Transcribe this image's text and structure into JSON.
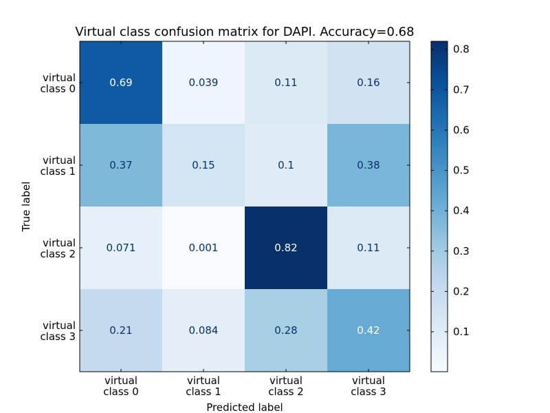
{
  "chart_data": {
    "type": "heatmap",
    "title": "Virtual class confusion matrix for DAPI. Accuracy=0.68",
    "xlabel": "Predicted label",
    "ylabel": "True label",
    "x_categories": [
      [
        "virtual",
        "class 0"
      ],
      [
        "virtual",
        "class 1"
      ],
      [
        "virtual",
        "class 2"
      ],
      [
        "virtual",
        "class 3"
      ]
    ],
    "y_categories": [
      [
        "virtual",
        "class 0"
      ],
      [
        "virtual",
        "class 1"
      ],
      [
        "virtual",
        "class 2"
      ],
      [
        "virtual",
        "class 3"
      ]
    ],
    "values": [
      [
        0.69,
        0.039,
        0.11,
        0.16
      ],
      [
        0.37,
        0.15,
        0.1,
        0.38
      ],
      [
        0.071,
        0.001,
        0.82,
        0.11
      ],
      [
        0.21,
        0.084,
        0.28,
        0.42
      ]
    ],
    "cell_labels": [
      [
        "0.69",
        "0.039",
        "0.11",
        "0.16"
      ],
      [
        "0.37",
        "0.15",
        "0.1",
        "0.38"
      ],
      [
        "0.071",
        "0.001",
        "0.82",
        "0.11"
      ],
      [
        "0.21",
        "0.084",
        "0.28",
        "0.42"
      ]
    ],
    "color_scale": {
      "name": "Blues",
      "min": 0.001,
      "max": 0.82,
      "stops": [
        "#f7fbff",
        "#deebf7",
        "#c6dbef",
        "#9ecae1",
        "#6baed6",
        "#4292c6",
        "#2171b5",
        "#08519c",
        "#08306b"
      ]
    },
    "colorbar_ticks": [
      0.1,
      0.2,
      0.3,
      0.4,
      0.5,
      0.6,
      0.7,
      0.8
    ],
    "colorbar_tick_labels": [
      "0.1",
      "0.2",
      "0.3",
      "0.4",
      "0.5",
      "0.6",
      "0.7",
      "0.8"
    ],
    "text_colors": {
      "dark": "#08306b",
      "light": "#ffffff"
    },
    "grid": false,
    "legend": "colorbar-right"
  }
}
